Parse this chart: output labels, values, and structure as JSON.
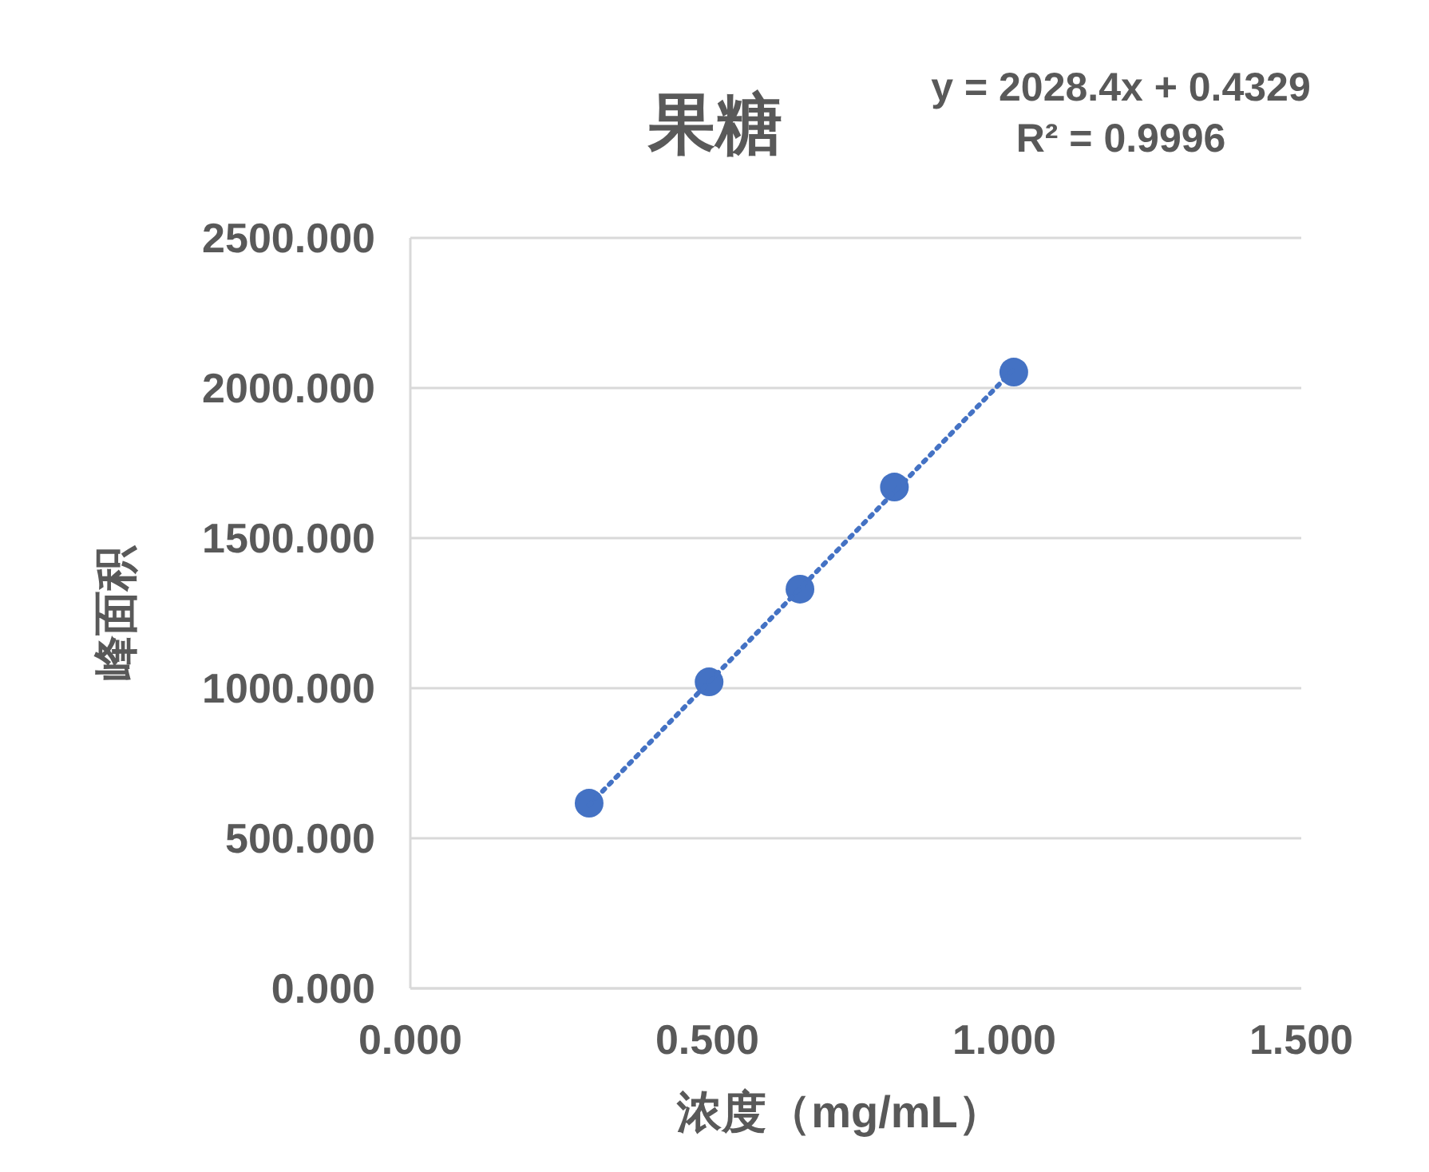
{
  "chart_data": {
    "type": "scatter",
    "title": "果糖",
    "xlabel": "浓度（mg/mL）",
    "ylabel": "峰面积",
    "annotations": [
      "y = 2028.4x + 0.4329",
      "R² = 0.9996"
    ],
    "series": [
      {
        "color": "#4472c4",
        "marker": "circle",
        "x": [
          0.301,
          0.503,
          0.656,
          0.815,
          1.016
        ],
        "values": [
          617,
          1021,
          1330,
          1670,
          2053
        ]
      },
      {
        "type": "line",
        "color": "#4472c4",
        "marker": "none",
        "line_style": "dotted",
        "x": [
          0.301,
          1.016
        ],
        "values": [
          611,
          2062
        ]
      }
    ],
    "xlim": [
      0,
      1.5
    ],
    "ylim": [
      0,
      2500
    ],
    "xticks": [
      {
        "value": 0,
        "label": "0.000"
      },
      {
        "value": 0.5,
        "label": "0.500"
      },
      {
        "value": 1,
        "label": "1.000"
      },
      {
        "value": 1.5,
        "label": "1.500"
      }
    ],
    "yticks": [
      {
        "value": 0,
        "label": "0.000"
      },
      {
        "value": 500,
        "label": "500.000"
      },
      {
        "value": 1000,
        "label": "1000.000"
      },
      {
        "value": 1500,
        "label": "1500.000"
      },
      {
        "value": 2000,
        "label": "2000.000"
      },
      {
        "value": 2500,
        "label": "2500.000"
      }
    ],
    "grid": "y"
  }
}
